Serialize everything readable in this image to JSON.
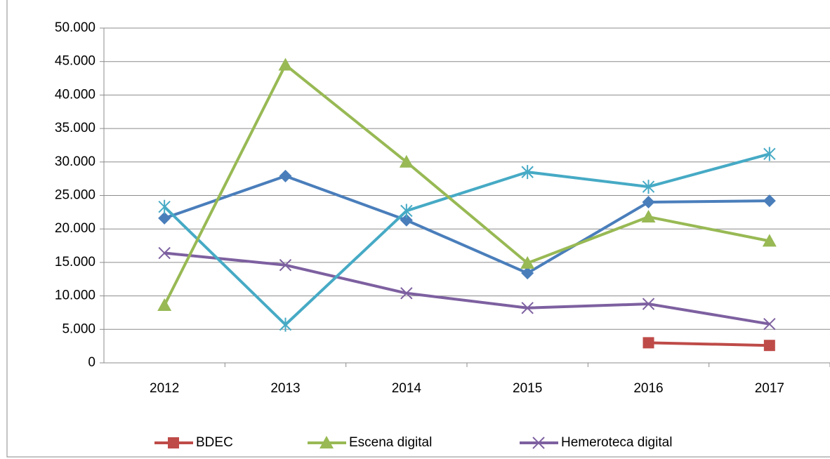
{
  "chart_data": {
    "type": "line",
    "categories": [
      "2012",
      "2013",
      "2014",
      "2015",
      "2016",
      "2017"
    ],
    "series": [
      {
        "name": "BDEC",
        "color": "#be4b48",
        "marker": "square",
        "values": [
          null,
          null,
          null,
          null,
          3000,
          2600
        ]
      },
      {
        "name": "Escena digital",
        "color": "#98b954",
        "marker": "triangle",
        "values": [
          8600,
          44500,
          30000,
          14900,
          21800,
          18200
        ]
      },
      {
        "name": "Hemeroteca digital",
        "color": "#7d60a0",
        "marker": "x",
        "values": [
          16400,
          14600,
          10400,
          8200,
          8800,
          5800
        ]
      },
      {
        "color": "#4a7ebb",
        "marker": "diamond",
        "values": [
          21600,
          27900,
          21300,
          13400,
          24000,
          24200
        ]
      },
      {
        "color": "#46aac5",
        "marker": "star",
        "values": [
          23300,
          5700,
          22700,
          28500,
          26300,
          31200
        ]
      }
    ],
    "ylim": [
      0,
      50000
    ],
    "yticks": [
      0,
      {
        "value": 5000,
        "label": "5.000"
      },
      {
        "value": 10000,
        "label": "10.000"
      },
      {
        "value": 15000,
        "label": "15.000"
      },
      {
        "value": 20000,
        "label": "20.000"
      },
      {
        "value": 25000,
        "label": "25.000"
      },
      {
        "value": 30000,
        "label": "30.000"
      },
      {
        "value": 35000,
        "label": "35.000"
      },
      {
        "value": 40000,
        "label": "40.000"
      },
      {
        "value": 45000,
        "label": "45.000"
      },
      {
        "value": 50000,
        "label": "50.000"
      }
    ],
    "grid": true,
    "legend": "bottom"
  }
}
